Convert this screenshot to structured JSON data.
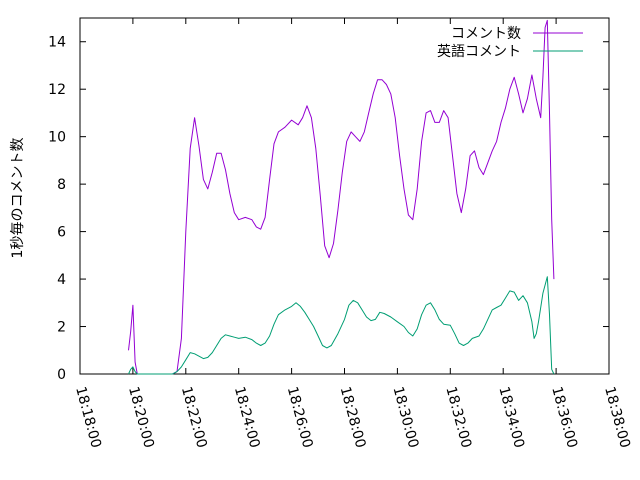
{
  "chart_data": {
    "type": "line",
    "ylabel": "1秒毎のコメント数",
    "ylim": [
      0,
      15
    ],
    "xlim": [
      "18:18:00",
      "18:38:00"
    ],
    "y_ticks": [
      "0",
      "2",
      "4",
      "6",
      "8",
      "10",
      "12",
      "14"
    ],
    "x_ticks": [
      "18:18:00",
      "18:20:00",
      "18:22:00",
      "18:24:00",
      "18:26:00",
      "18:28:00",
      "18:30:00",
      "18:32:00",
      "18:34:00",
      "18:36:00",
      "18:38:00"
    ],
    "grid": false,
    "legend_position": "top-right",
    "series": [
      {
        "name": "コメント数",
        "color": "#9400d3",
        "points": [
          [
            "18:19:50",
            1.0
          ],
          [
            "18:19:55",
            1.8
          ],
          [
            "18:20:00",
            2.9
          ],
          [
            "18:20:05",
            0.5
          ],
          [
            "18:20:10",
            0.0
          ],
          [
            "18:20:20",
            0.0
          ],
          [
            "18:21:30",
            0.0
          ],
          [
            "18:21:40",
            0.1
          ],
          [
            "18:21:50",
            1.5
          ],
          [
            "18:22:00",
            6.0
          ],
          [
            "18:22:10",
            9.5
          ],
          [
            "18:22:20",
            10.8
          ],
          [
            "18:22:30",
            9.6
          ],
          [
            "18:22:40",
            8.2
          ],
          [
            "18:22:50",
            7.8
          ],
          [
            "18:23:00",
            8.5
          ],
          [
            "18:23:10",
            9.3
          ],
          [
            "18:23:20",
            9.3
          ],
          [
            "18:23:30",
            8.6
          ],
          [
            "18:23:40",
            7.6
          ],
          [
            "18:23:50",
            6.8
          ],
          [
            "18:24:00",
            6.5
          ],
          [
            "18:24:15",
            6.6
          ],
          [
            "18:24:30",
            6.5
          ],
          [
            "18:24:40",
            6.2
          ],
          [
            "18:24:50",
            6.1
          ],
          [
            "18:25:00",
            6.6
          ],
          [
            "18:25:10",
            8.2
          ],
          [
            "18:25:20",
            9.7
          ],
          [
            "18:25:30",
            10.2
          ],
          [
            "18:25:45",
            10.4
          ],
          [
            "18:26:00",
            10.7
          ],
          [
            "18:26:15",
            10.5
          ],
          [
            "18:26:25",
            10.8
          ],
          [
            "18:26:35",
            11.3
          ],
          [
            "18:26:45",
            10.8
          ],
          [
            "18:26:55",
            9.5
          ],
          [
            "18:27:05",
            7.5
          ],
          [
            "18:27:15",
            5.4
          ],
          [
            "18:27:25",
            4.9
          ],
          [
            "18:27:35",
            5.5
          ],
          [
            "18:27:45",
            6.9
          ],
          [
            "18:27:55",
            8.5
          ],
          [
            "18:28:05",
            9.8
          ],
          [
            "18:28:15",
            10.2
          ],
          [
            "18:28:25",
            10.0
          ],
          [
            "18:28:35",
            9.8
          ],
          [
            "18:28:45",
            10.2
          ],
          [
            "18:28:55",
            11.0
          ],
          [
            "18:29:05",
            11.8
          ],
          [
            "18:29:15",
            12.4
          ],
          [
            "18:29:25",
            12.4
          ],
          [
            "18:29:35",
            12.2
          ],
          [
            "18:29:45",
            11.8
          ],
          [
            "18:29:55",
            10.8
          ],
          [
            "18:30:05",
            9.2
          ],
          [
            "18:30:15",
            7.8
          ],
          [
            "18:30:25",
            6.7
          ],
          [
            "18:30:35",
            6.5
          ],
          [
            "18:30:45",
            7.8
          ],
          [
            "18:30:55",
            9.8
          ],
          [
            "18:31:05",
            11.0
          ],
          [
            "18:31:15",
            11.1
          ],
          [
            "18:31:25",
            10.6
          ],
          [
            "18:31:35",
            10.6
          ],
          [
            "18:31:45",
            11.1
          ],
          [
            "18:31:55",
            10.8
          ],
          [
            "18:32:05",
            9.2
          ],
          [
            "18:32:15",
            7.6
          ],
          [
            "18:32:25",
            6.8
          ],
          [
            "18:32:35",
            7.8
          ],
          [
            "18:32:45",
            9.2
          ],
          [
            "18:32:55",
            9.4
          ],
          [
            "18:33:05",
            8.7
          ],
          [
            "18:33:15",
            8.4
          ],
          [
            "18:33:25",
            8.9
          ],
          [
            "18:33:35",
            9.4
          ],
          [
            "18:33:45",
            9.8
          ],
          [
            "18:33:55",
            10.6
          ],
          [
            "18:34:05",
            11.2
          ],
          [
            "18:34:15",
            12.0
          ],
          [
            "18:34:25",
            12.5
          ],
          [
            "18:34:35",
            11.8
          ],
          [
            "18:34:45",
            11.0
          ],
          [
            "18:34:55",
            11.6
          ],
          [
            "18:35:05",
            12.6
          ],
          [
            "18:35:15",
            11.6
          ],
          [
            "18:35:25",
            10.8
          ],
          [
            "18:35:30",
            12.5
          ],
          [
            "18:35:35",
            14.6
          ],
          [
            "18:35:40",
            14.9
          ],
          [
            "18:35:45",
            11.0
          ],
          [
            "18:35:50",
            6.5
          ],
          [
            "18:35:55",
            4.0
          ]
        ]
      },
      {
        "name": "英語コメント",
        "color": "#009e73",
        "points": [
          [
            "18:19:50",
            0.0
          ],
          [
            "18:19:55",
            0.2
          ],
          [
            "18:20:00",
            0.3
          ],
          [
            "18:20:05",
            0.1
          ],
          [
            "18:20:10",
            0.0
          ],
          [
            "18:21:30",
            0.0
          ],
          [
            "18:21:40",
            0.1
          ],
          [
            "18:21:50",
            0.3
          ],
          [
            "18:22:00",
            0.6
          ],
          [
            "18:22:10",
            0.9
          ],
          [
            "18:22:20",
            0.85
          ],
          [
            "18:22:30",
            0.75
          ],
          [
            "18:22:40",
            0.65
          ],
          [
            "18:22:50",
            0.7
          ],
          [
            "18:23:00",
            0.9
          ],
          [
            "18:23:10",
            1.2
          ],
          [
            "18:23:20",
            1.5
          ],
          [
            "18:23:30",
            1.65
          ],
          [
            "18:23:40",
            1.6
          ],
          [
            "18:23:50",
            1.55
          ],
          [
            "18:24:00",
            1.5
          ],
          [
            "18:24:15",
            1.55
          ],
          [
            "18:24:30",
            1.45
          ],
          [
            "18:24:40",
            1.3
          ],
          [
            "18:24:50",
            1.2
          ],
          [
            "18:25:00",
            1.3
          ],
          [
            "18:25:10",
            1.6
          ],
          [
            "18:25:20",
            2.1
          ],
          [
            "18:25:30",
            2.5
          ],
          [
            "18:25:45",
            2.7
          ],
          [
            "18:26:00",
            2.85
          ],
          [
            "18:26:10",
            3.0
          ],
          [
            "18:26:20",
            2.85
          ],
          [
            "18:26:30",
            2.6
          ],
          [
            "18:26:40",
            2.3
          ],
          [
            "18:26:50",
            2.0
          ],
          [
            "18:27:00",
            1.6
          ],
          [
            "18:27:10",
            1.2
          ],
          [
            "18:27:20",
            1.1
          ],
          [
            "18:27:30",
            1.2
          ],
          [
            "18:27:45",
            1.7
          ],
          [
            "18:28:00",
            2.3
          ],
          [
            "18:28:10",
            2.9
          ],
          [
            "18:28:20",
            3.1
          ],
          [
            "18:28:30",
            3.0
          ],
          [
            "18:28:40",
            2.7
          ],
          [
            "18:28:50",
            2.4
          ],
          [
            "18:29:00",
            2.25
          ],
          [
            "18:29:10",
            2.3
          ],
          [
            "18:29:20",
            2.6
          ],
          [
            "18:29:30",
            2.55
          ],
          [
            "18:29:45",
            2.4
          ],
          [
            "18:30:00",
            2.2
          ],
          [
            "18:30:15",
            2.0
          ],
          [
            "18:30:25",
            1.75
          ],
          [
            "18:30:35",
            1.6
          ],
          [
            "18:30:45",
            1.9
          ],
          [
            "18:30:55",
            2.5
          ],
          [
            "18:31:05",
            2.9
          ],
          [
            "18:31:15",
            3.0
          ],
          [
            "18:31:25",
            2.7
          ],
          [
            "18:31:35",
            2.3
          ],
          [
            "18:31:45",
            2.1
          ],
          [
            "18:32:00",
            2.05
          ],
          [
            "18:32:10",
            1.7
          ],
          [
            "18:32:20",
            1.3
          ],
          [
            "18:32:30",
            1.2
          ],
          [
            "18:32:40",
            1.3
          ],
          [
            "18:32:50",
            1.5
          ],
          [
            "18:33:05",
            1.6
          ],
          [
            "18:33:15",
            1.9
          ],
          [
            "18:33:25",
            2.3
          ],
          [
            "18:33:35",
            2.7
          ],
          [
            "18:33:45",
            2.8
          ],
          [
            "18:33:55",
            2.9
          ],
          [
            "18:34:05",
            3.2
          ],
          [
            "18:34:15",
            3.5
          ],
          [
            "18:34:25",
            3.45
          ],
          [
            "18:34:35",
            3.1
          ],
          [
            "18:34:45",
            3.3
          ],
          [
            "18:34:55",
            3.0
          ],
          [
            "18:35:05",
            2.2
          ],
          [
            "18:35:10",
            1.5
          ],
          [
            "18:35:15",
            1.7
          ],
          [
            "18:35:20",
            2.2
          ],
          [
            "18:35:30",
            3.4
          ],
          [
            "18:35:40",
            4.1
          ],
          [
            "18:35:45",
            2.5
          ],
          [
            "18:35:50",
            0.2
          ],
          [
            "18:35:55",
            0.0
          ]
        ]
      }
    ]
  }
}
